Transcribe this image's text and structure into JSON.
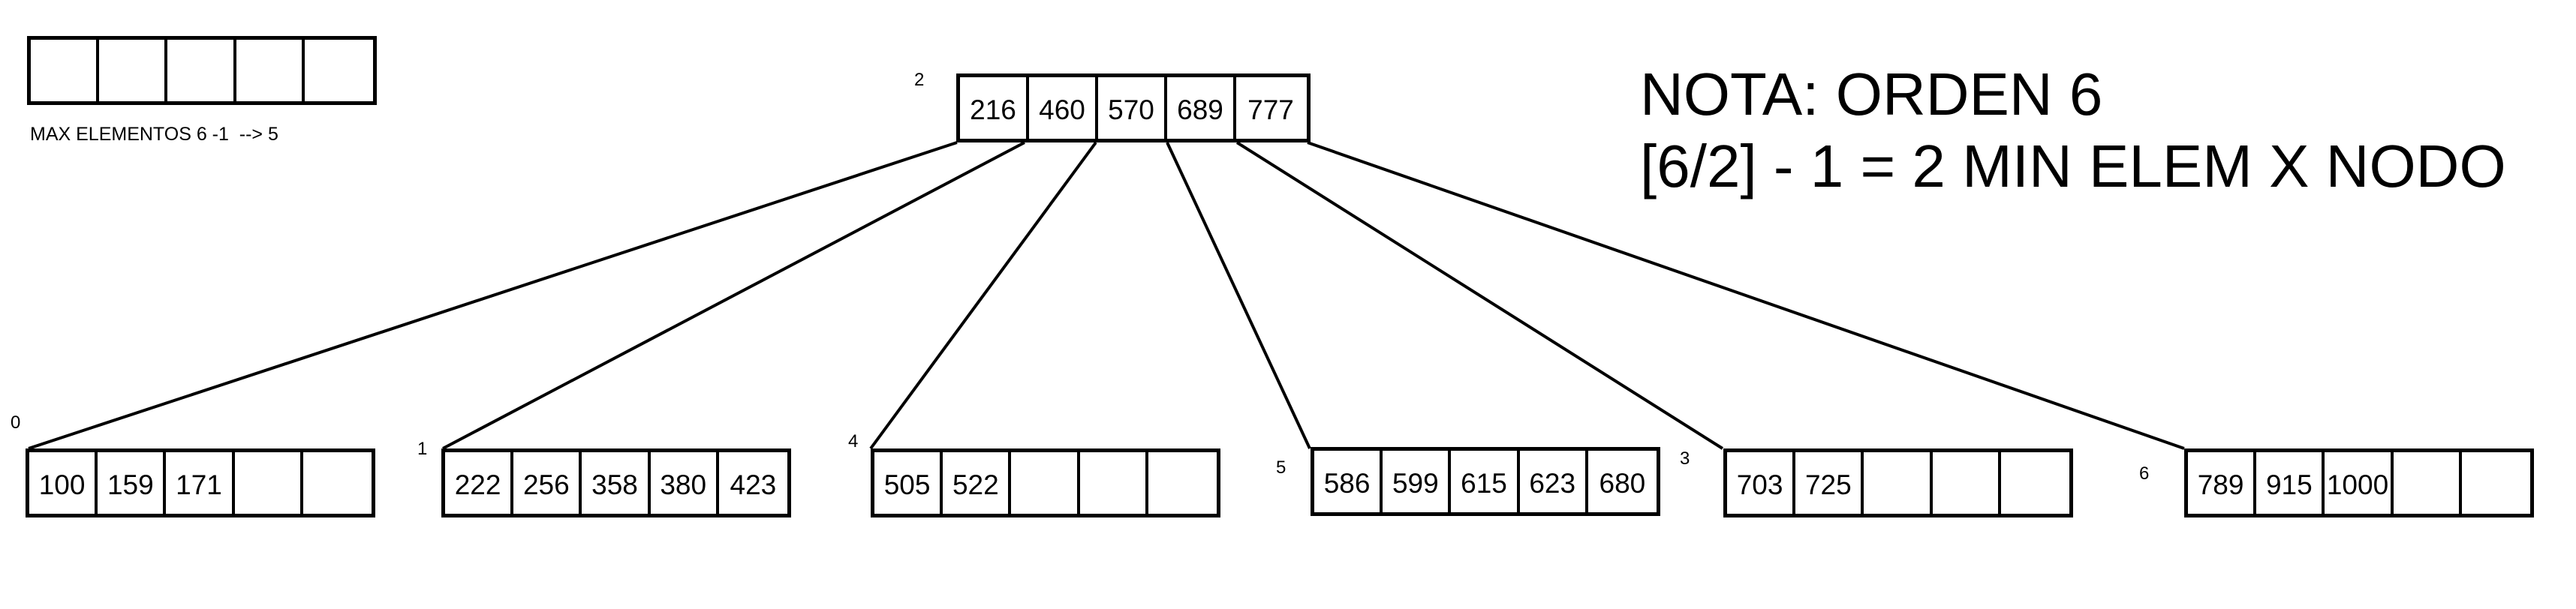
{
  "legend": {
    "empty_cells": 5,
    "caption": "MAX ELEMENTOS 6 -1  --> 5"
  },
  "note": {
    "line1": "NOTA: ORDEN 6",
    "line2": "[6/2] - 1 = 2 MIN ELEM X NODO"
  },
  "root": {
    "id": "2",
    "keys": [
      "216",
      "460",
      "570",
      "689",
      "777"
    ]
  },
  "children": [
    {
      "id": "0",
      "keys": [
        "100",
        "159",
        "171",
        "",
        ""
      ]
    },
    {
      "id": "1",
      "keys": [
        "222",
        "256",
        "358",
        "380",
        "423"
      ]
    },
    {
      "id": "4",
      "keys": [
        "505",
        "522",
        "",
        "",
        ""
      ]
    },
    {
      "id": "5",
      "keys": [
        "586",
        "599",
        "615",
        "623",
        "680"
      ]
    },
    {
      "id": "3",
      "keys": [
        "703",
        "725",
        "",
        "",
        ""
      ]
    },
    {
      "id": "6",
      "keys": [
        "789",
        "915",
        "1000",
        "",
        ""
      ]
    }
  ]
}
